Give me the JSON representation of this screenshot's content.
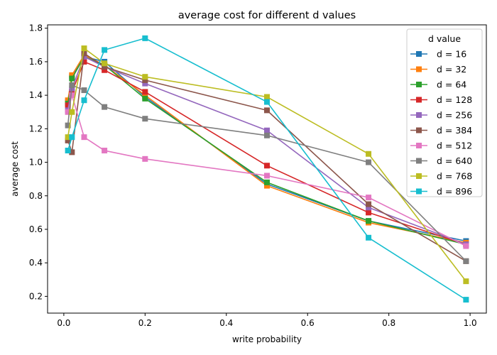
{
  "chart_data": {
    "type": "line",
    "title": "average cost for different d values",
    "xlabel": "write probability",
    "ylabel": "average cost",
    "xlim": [
      -0.04,
      1.04
    ],
    "ylim": [
      0.1,
      1.82
    ],
    "xticks": [
      0.0,
      0.2,
      0.4,
      0.6,
      0.8,
      1.0
    ],
    "xtick_labels": [
      "0.0",
      "0.2",
      "0.4",
      "0.6",
      "0.8",
      "1.0"
    ],
    "yticks": [
      0.2,
      0.4,
      0.6,
      0.8,
      1.0,
      1.2,
      1.4,
      1.6,
      1.8
    ],
    "ytick_labels": [
      "0.2",
      "0.4",
      "0.6",
      "0.8",
      "1.0",
      "1.2",
      "1.4",
      "1.6",
      "1.8"
    ],
    "grid": false,
    "legend_title": "d value",
    "legend_position": "top-right",
    "x": [
      0.01,
      0.02,
      0.05,
      0.1,
      0.2,
      0.5,
      0.75,
      0.99
    ],
    "series": [
      {
        "name": "d = 16",
        "color": "#1f77b4",
        "values": [
          1.36,
          1.51,
          1.63,
          1.6,
          1.39,
          0.87,
          0.65,
          0.53
        ]
      },
      {
        "name": "d = 32",
        "color": "#ff7f0e",
        "values": [
          1.37,
          1.52,
          1.64,
          1.58,
          1.4,
          0.86,
          0.64,
          0.52
        ]
      },
      {
        "name": "d = 64",
        "color": "#2ca02c",
        "values": [
          1.35,
          1.5,
          1.63,
          1.58,
          1.38,
          0.88,
          0.65,
          0.51
        ]
      },
      {
        "name": "d = 128",
        "color": "#d62728",
        "values": [
          1.34,
          1.42,
          1.6,
          1.55,
          1.42,
          0.98,
          0.7,
          0.51
        ]
      },
      {
        "name": "d = 256",
        "color": "#9467bd",
        "values": [
          1.31,
          1.44,
          1.63,
          1.57,
          1.47,
          1.19,
          0.73,
          0.51
        ]
      },
      {
        "name": "d = 384",
        "color": "#8c564b",
        "values": [
          1.13,
          1.06,
          1.65,
          1.57,
          1.49,
          1.31,
          0.75,
          0.41
        ]
      },
      {
        "name": "d = 512",
        "color": "#e377c2",
        "values": [
          1.3,
          1.4,
          1.15,
          1.07,
          1.02,
          0.92,
          0.79,
          0.5
        ]
      },
      {
        "name": "d = 640",
        "color": "#7f7f7f",
        "values": [
          1.22,
          1.46,
          1.43,
          1.33,
          1.26,
          1.16,
          1.0,
          0.41
        ]
      },
      {
        "name": "d = 768",
        "color": "#bcbd22",
        "values": [
          1.15,
          1.3,
          1.68,
          1.59,
          1.51,
          1.39,
          1.05,
          0.29
        ]
      },
      {
        "name": "d = 896",
        "color": "#17becf",
        "values": [
          1.07,
          1.15,
          1.37,
          1.67,
          1.74,
          1.36,
          0.55,
          0.18
        ]
      }
    ]
  }
}
